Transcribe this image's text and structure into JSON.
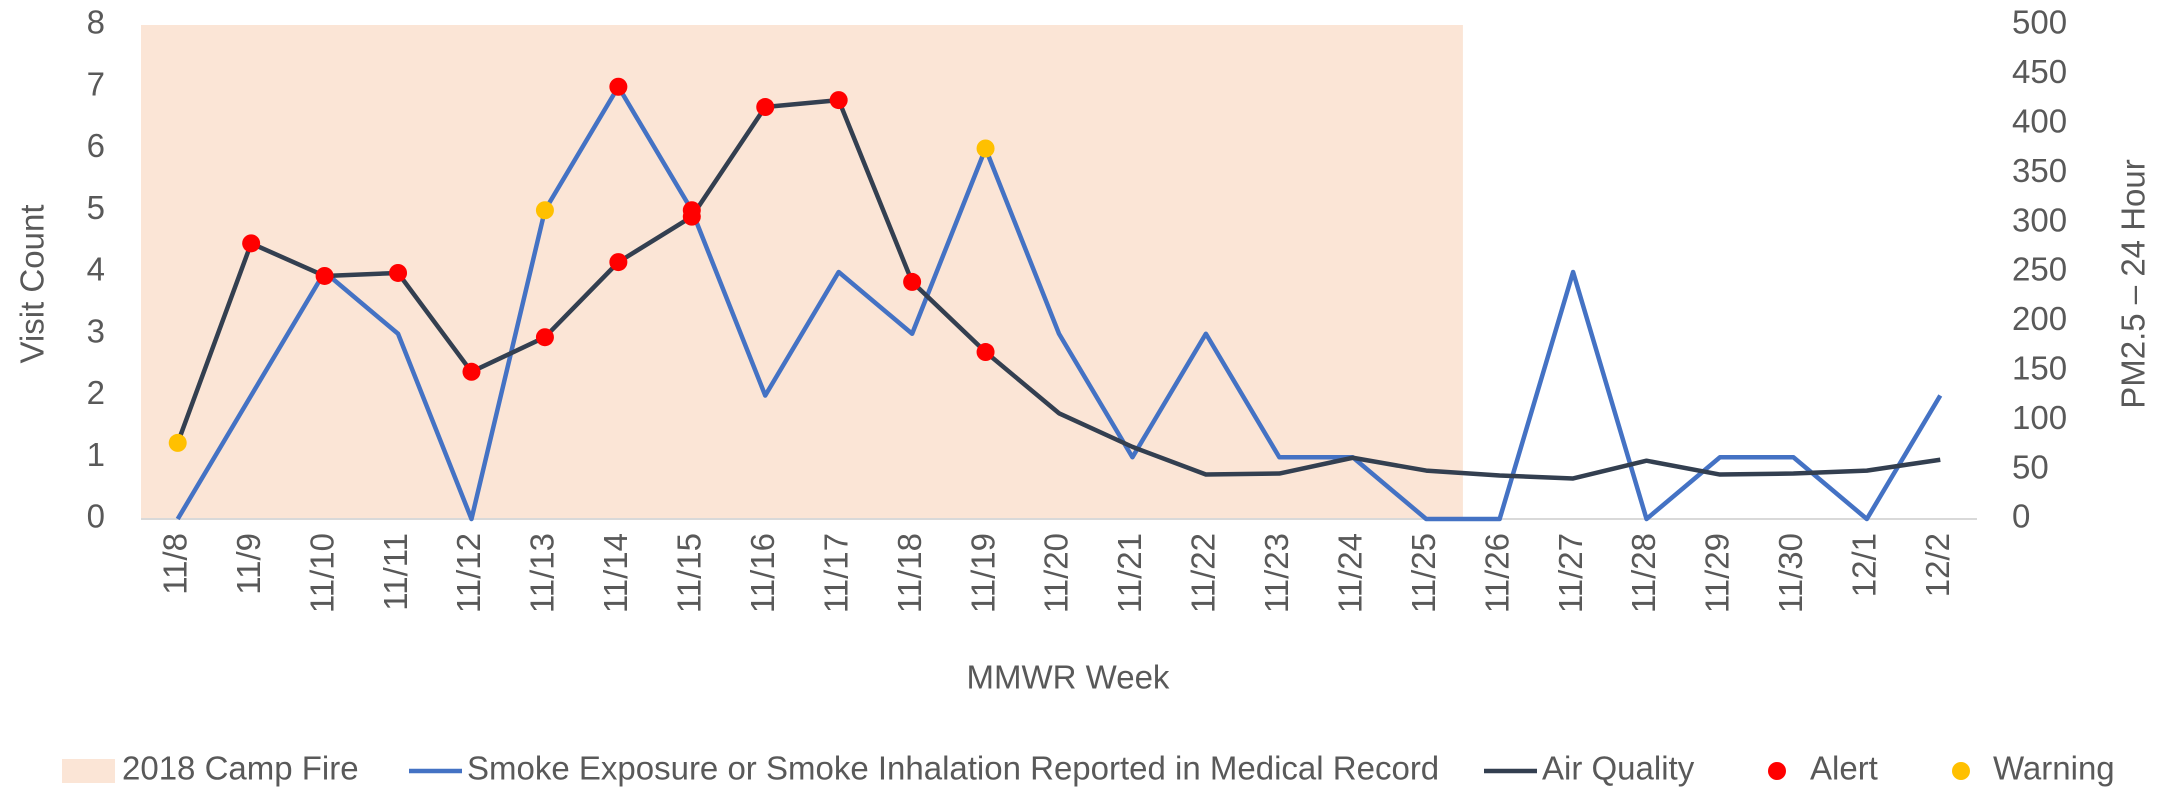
{
  "chart_data": {
    "type": "line",
    "x_label": "MMWR Week",
    "y_label": "Visit Count",
    "y2_label": "PM2.5 – 24 Hour",
    "categories": [
      "11/8",
      "11/9",
      "11/10",
      "11/11",
      "11/12",
      "11/13",
      "11/14",
      "11/15",
      "11/16",
      "11/17",
      "11/18",
      "11/19",
      "11/20",
      "11/21",
      "11/22",
      "11/23",
      "11/24",
      "11/25",
      "11/26",
      "11/27",
      "11/28",
      "11/29",
      "11/30",
      "12/1",
      "12/2"
    ],
    "shade": {
      "name": "2018 Camp Fire",
      "from": "11/8",
      "to": "11/25",
      "color": "#fbe5d6"
    },
    "series": [
      {
        "name": "Smoke Exposure or Smoke Inhalation Reported in Medical Record",
        "type": "line",
        "axis": "y",
        "color": "#4472c4",
        "values": [
          0,
          2,
          4,
          3,
          0,
          5,
          7,
          5,
          2,
          4,
          3,
          6,
          3,
          1,
          3,
          1,
          1,
          0,
          0,
          4,
          0,
          1,
          1,
          0,
          2
        ]
      },
      {
        "name": "Air Quality",
        "type": "line",
        "axis": "y2",
        "color": "#333f50",
        "values": [
          77,
          279,
          246,
          249,
          149,
          184,
          260,
          306,
          417,
          424,
          240,
          169,
          107,
          73,
          45,
          46,
          62,
          49,
          44,
          41,
          59,
          45,
          46,
          49,
          60
        ]
      },
      {
        "name": "Alert",
        "type": "scatter",
        "color": "#ff0000",
        "y2_values": [
          null,
          279,
          246,
          249,
          149,
          184,
          260,
          306,
          417,
          424,
          240,
          169,
          null,
          null,
          null,
          null,
          null,
          null,
          null,
          null,
          null,
          null,
          null,
          null,
          null
        ],
        "y_values": [
          null,
          null,
          null,
          null,
          null,
          null,
          7,
          5,
          null,
          null,
          null,
          null,
          null,
          null,
          null,
          null,
          null,
          null,
          null,
          null,
          null,
          null,
          null,
          null,
          null
        ]
      },
      {
        "name": "Warning",
        "type": "scatter",
        "color": "#ffc000",
        "y2_values": [
          77,
          null,
          null,
          null,
          null,
          null,
          null,
          null,
          null,
          null,
          null,
          null,
          null,
          null,
          null,
          null,
          null,
          null,
          null,
          null,
          null,
          null,
          null,
          null,
          null
        ],
        "y_values": [
          null,
          null,
          null,
          null,
          null,
          5,
          null,
          null,
          null,
          null,
          null,
          6,
          null,
          null,
          null,
          null,
          null,
          null,
          null,
          null,
          null,
          null,
          null,
          null,
          null
        ]
      }
    ],
    "ylim": [
      0,
      8
    ],
    "yticks": [
      0,
      1,
      2,
      3,
      4,
      5,
      6,
      7,
      8
    ],
    "y2lim": [
      0,
      500
    ],
    "y2ticks": [
      0,
      50,
      100,
      150,
      200,
      250,
      300,
      350,
      400,
      450,
      500
    ],
    "grid": false
  }
}
